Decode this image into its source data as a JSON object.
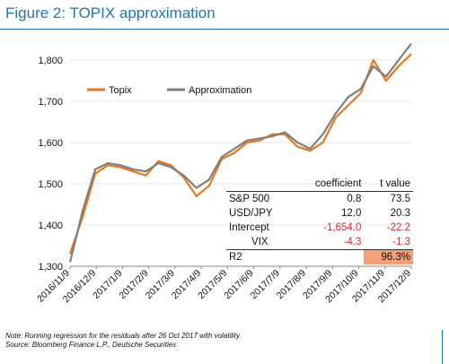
{
  "title": "Figure 2: TOPIX approximation",
  "notes": {
    "line1": "Note: Running regression for the residuals after 26 Oct 2017 with volatility.",
    "line2": "Source: Bloomberg Finance L.P., Deutsche Securities"
  },
  "colors": {
    "title": "#1f77b4",
    "topix": "#e8761f",
    "approximation": "#7f7f7f",
    "negative": "#d62728",
    "highlight": "#f2a07a"
  },
  "table": {
    "headers": [
      "coefficient",
      "t value"
    ],
    "rows": [
      {
        "label": "S&P 500",
        "coefficient": "0.8",
        "t_value": "73.5"
      },
      {
        "label": "USD/JPY",
        "coefficient": "12.0",
        "t_value": "20.3"
      },
      {
        "label": "Intercept",
        "coefficient": "-1,654.0",
        "t_value": "-22.2"
      },
      {
        "label": "VIX",
        "coefficient": "-4.3",
        "t_value": "-1.3"
      }
    ],
    "r2": {
      "label": "R2",
      "value": "96.3%"
    }
  },
  "chart_data": {
    "type": "line",
    "title": "",
    "xlabel": "",
    "ylabel": "",
    "ylim": [
      1300,
      1850
    ],
    "yticks": [
      1300,
      1400,
      1500,
      1600,
      1700,
      1800
    ],
    "ytick_labels": [
      "1,300",
      "1,400",
      "1,500",
      "1,600",
      "1,700",
      "1,800"
    ],
    "xtick_labels": [
      "2016/11/9",
      "2016/12/9",
      "2017/1/9",
      "2017/2/9",
      "2017/3/9",
      "2017/4/9",
      "2017/5/9",
      "2017/6/9",
      "2017/7/9",
      "2017/8/9",
      "2017/9/9",
      "2017/10/9",
      "2017/11/9",
      "2017/12/9"
    ],
    "x": [
      "2016/11/9",
      "2016/11/24",
      "2016/12/9",
      "2016/12/24",
      "2017/1/9",
      "2017/1/24",
      "2017/2/9",
      "2017/2/24",
      "2017/3/9",
      "2017/3/24",
      "2017/4/9",
      "2017/4/24",
      "2017/5/9",
      "2017/5/24",
      "2017/6/9",
      "2017/6/24",
      "2017/7/9",
      "2017/7/24",
      "2017/8/9",
      "2017/8/24",
      "2017/9/9",
      "2017/9/24",
      "2017/10/9",
      "2017/10/24",
      "2017/11/9",
      "2017/11/24",
      "2017/12/9",
      "2017/12/20"
    ],
    "legend": "top-left",
    "series": [
      {
        "name": "Topix",
        "values": [
          1330,
          1420,
          1525,
          1545,
          1540,
          1530,
          1520,
          1555,
          1545,
          1515,
          1470,
          1495,
          1560,
          1575,
          1600,
          1605,
          1620,
          1620,
          1590,
          1580,
          1600,
          1660,
          1690,
          1720,
          1800,
          1750,
          1785,
          1815
        ]
      },
      {
        "name": "Approximation",
        "values": [
          1310,
          1435,
          1535,
          1550,
          1545,
          1535,
          1530,
          1550,
          1540,
          1520,
          1490,
          1510,
          1565,
          1585,
          1605,
          1610,
          1615,
          1625,
          1600,
          1585,
          1620,
          1670,
          1710,
          1730,
          1785,
          1760,
          1800,
          1840
        ]
      }
    ]
  }
}
